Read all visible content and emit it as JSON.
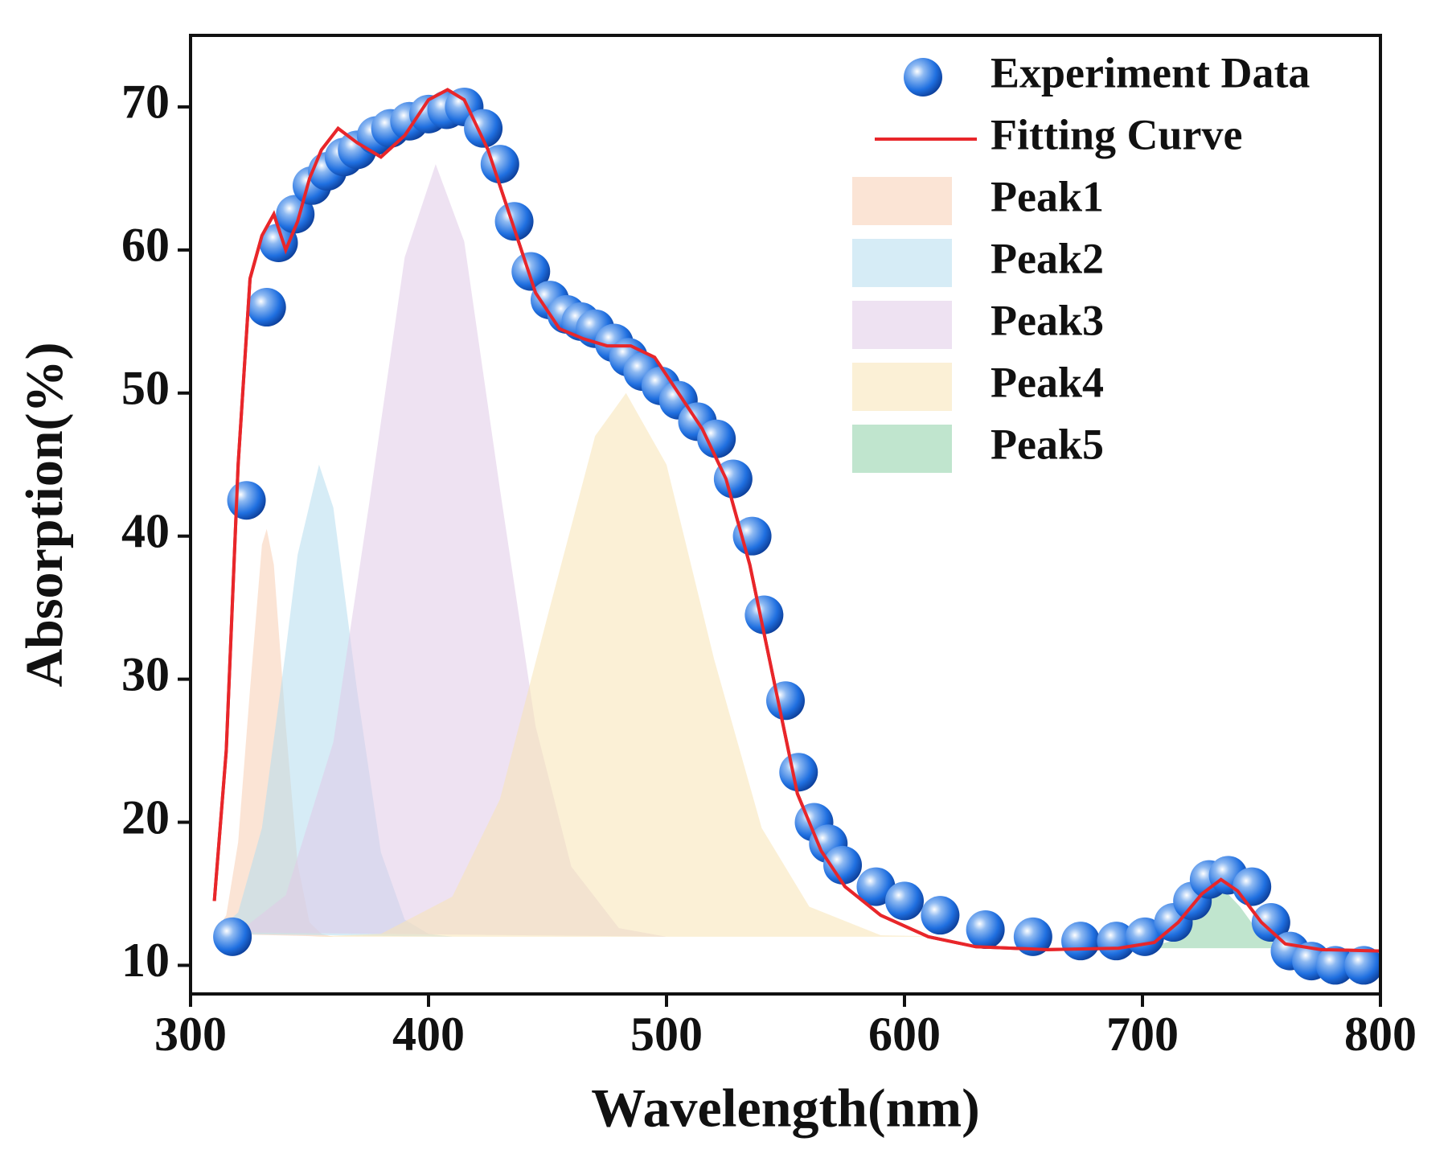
{
  "chart_data": {
    "type": "scatter",
    "x_label": "Wavelength(nm)",
    "y_label": "Absorption(%)",
    "xlim": [
      300,
      800
    ],
    "ylim": [
      8,
      75
    ],
    "xticks": [
      300,
      400,
      500,
      600,
      700,
      800
    ],
    "yticks": [
      10,
      20,
      30,
      40,
      50,
      60,
      70
    ],
    "legend": "upper right",
    "series": [
      {
        "name": "Peak1",
        "type": "area",
        "color": "#f7cdb3",
        "x": [
          310,
          315,
          320,
          325,
          330,
          332,
          335,
          340,
          345,
          350,
          355,
          360
        ],
        "values": [
          12.2,
          13.5,
          18.6,
          29.3,
          39.4,
          40.5,
          38,
          26.8,
          17.1,
          13,
          12.2,
          12
        ]
      },
      {
        "name": "Peak2",
        "type": "area",
        "color": "#b5dcef",
        "x": [
          310,
          320,
          330,
          340,
          345,
          354,
          360,
          370,
          380,
          390,
          400,
          410
        ],
        "values": [
          12.2,
          13.7,
          19.6,
          32,
          38.7,
          45,
          42,
          29.2,
          17.9,
          13.2,
          12.2,
          12
        ]
      },
      {
        "name": "Peak3",
        "type": "area",
        "color": "#e0cbe8",
        "x": [
          320,
          340,
          360,
          375,
          390,
          403,
          415,
          430,
          445,
          460,
          480,
          500
        ],
        "values": [
          12.3,
          14.9,
          25.6,
          42.2,
          59.5,
          66,
          60.6,
          43.3,
          26.7,
          16.9,
          12.6,
          12
        ]
      },
      {
        "name": "Peak4",
        "type": "area",
        "color": "#f7e4b5",
        "x": [
          350,
          380,
          410,
          430,
          450,
          470,
          483,
          500,
          520,
          540,
          560,
          590,
          620
        ],
        "values": [
          12,
          12.2,
          14.8,
          21.6,
          34.4,
          47,
          50,
          45,
          31.4,
          19.6,
          14.1,
          12.1,
          12
        ]
      },
      {
        "name": "Peak5",
        "type": "area",
        "color": "#8ccfa6",
        "x": [
          700,
          715,
          725,
          733,
          741,
          751,
          765
        ],
        "values": [
          11.2,
          11.8,
          14.1,
          15.5,
          14.1,
          11.8,
          11.2
        ]
      },
      {
        "name": "Experiment Data",
        "type": "scatter",
        "color": "#1f6fe0",
        "x": [
          317.6,
          323.5,
          332,
          337,
          344,
          351,
          357.5,
          364.5,
          370,
          378,
          384,
          392,
          400,
          407.6,
          415,
          423,
          430,
          436,
          443,
          451,
          458,
          464,
          470,
          478,
          484,
          490,
          497.6,
          505,
          513,
          521,
          528,
          536,
          541,
          550,
          555.5,
          562,
          568,
          574,
          588,
          600,
          615,
          634,
          654,
          674,
          689,
          701,
          713,
          721,
          728,
          736,
          746,
          754,
          762,
          771,
          781,
          793
        ],
        "values": [
          12,
          42.5,
          56,
          60.5,
          62.5,
          64.5,
          65.5,
          66.5,
          67,
          68,
          68.5,
          69,
          69.5,
          69.8,
          70,
          68.5,
          66,
          62,
          58.5,
          56.5,
          55.5,
          55,
          54.5,
          53.5,
          52.5,
          51.5,
          50.5,
          49.5,
          48,
          46.8,
          44,
          40,
          34.5,
          28.5,
          23.5,
          20,
          18.5,
          17,
          15.5,
          14.5,
          13.5,
          12.5,
          12,
          11.7,
          11.7,
          12,
          13,
          14.5,
          16,
          16.3,
          15.5,
          13,
          11,
          10.3,
          10,
          10
        ]
      },
      {
        "name": "Fitting Curve",
        "type": "line",
        "color": "#e8262a",
        "x": [
          310,
          315,
          320,
          325,
          330,
          335,
          340,
          345,
          350,
          355,
          362,
          370,
          380,
          390,
          400,
          408,
          415,
          425,
          435,
          445,
          455,
          465,
          475,
          485,
          495,
          505,
          515,
          525,
          535,
          545,
          555,
          565,
          575,
          590,
          610,
          630,
          660,
          690,
          705,
          715,
          725,
          733,
          740,
          750,
          760,
          775,
          800
        ],
        "values": [
          14.5,
          25,
          45,
          58,
          61,
          62.5,
          60,
          62,
          65,
          67,
          68.5,
          67.5,
          66.5,
          68,
          70.5,
          71.2,
          70.5,
          67,
          62,
          57,
          54.5,
          53.8,
          53.3,
          53.3,
          52.5,
          50,
          47.5,
          44,
          38,
          30,
          22,
          18,
          15.5,
          13.5,
          12,
          11.3,
          11.1,
          11.2,
          11.6,
          13,
          15,
          16,
          15.2,
          13,
          11.5,
          11.1,
          11
        ]
      }
    ]
  }
}
